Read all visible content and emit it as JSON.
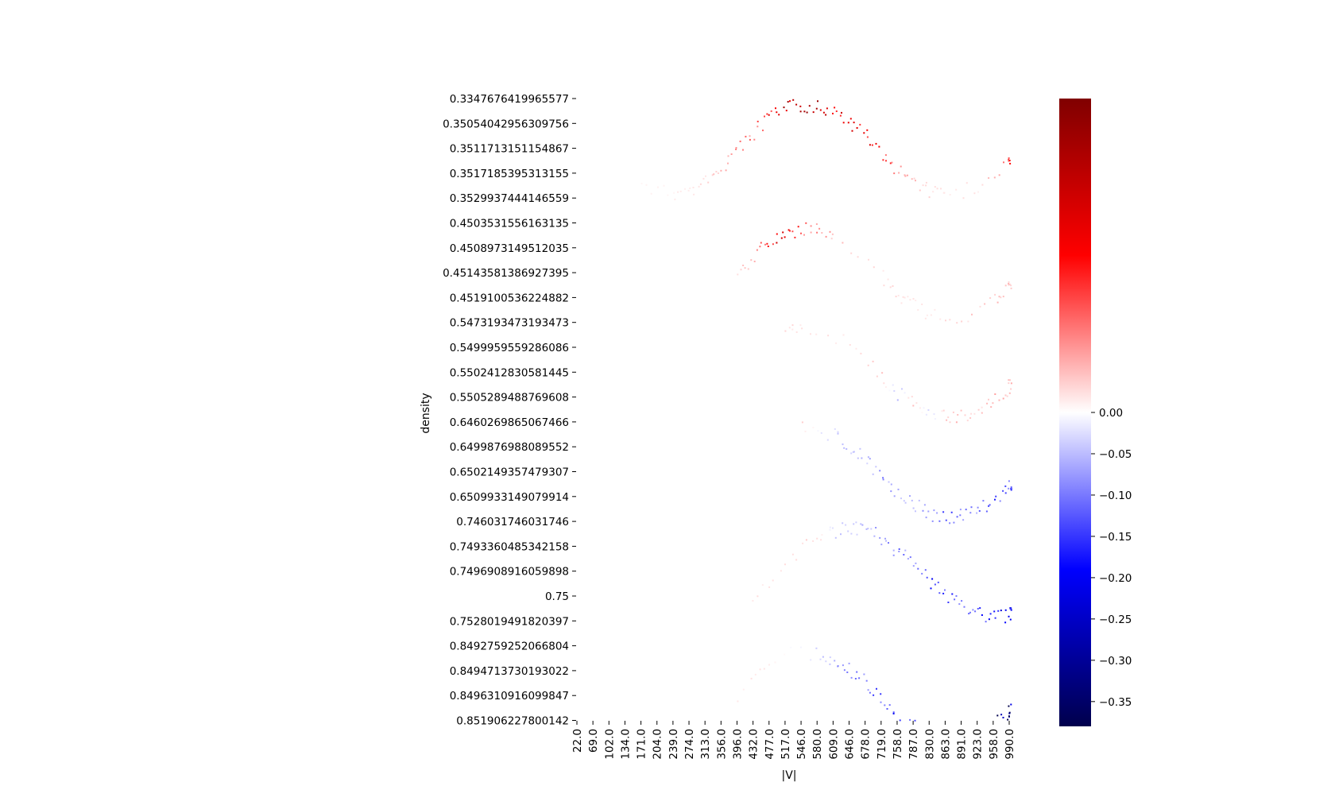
{
  "chart_data": {
    "type": "heatmap",
    "title": "",
    "xlabel": "|V|",
    "ylabel": "density",
    "x_tick_labels": [
      "22.0",
      "69.0",
      "102.0",
      "134.0",
      "171.0",
      "204.0",
      "239.0",
      "274.0",
      "313.0",
      "356.0",
      "396.0",
      "432.0",
      "477.0",
      "517.0",
      "546.0",
      "580.0",
      "609.0",
      "646.0",
      "678.0",
      "719.0",
      "758.0",
      "787.0",
      "830.0",
      "863.0",
      "891.0",
      "923.0",
      "958.0",
      "990.0"
    ],
    "y_tick_labels": [
      "0.3347676419965577",
      "0.35054042956309756",
      "0.3511713151154867",
      "0.3517185395313155",
      "0.3529937444146559",
      "0.4503531556163135",
      "0.4508973149512035",
      "0.45143581386927395",
      "0.4519100536224882",
      "0.5473193473193473",
      "0.5499959559286086",
      "0.5502412830581445",
      "0.5505289488769608",
      "0.6460269865067466",
      "0.6499876988089552",
      "0.6502149357479307",
      "0.6509933149079914",
      "0.746031746031746",
      "0.7493360485342158",
      "0.7496908916059898",
      "0.75",
      "0.7528019491820397",
      "0.8492759252066804",
      "0.8494713730193022",
      "0.8496310916099847",
      "0.851906227800142"
    ],
    "colorbar": {
      "colormap": "seismic",
      "min": -0.38,
      "max": 0.38,
      "ticks": [
        0.0,
        -0.05,
        -0.1,
        -0.15,
        -0.2,
        -0.25,
        -0.3,
        -0.35
      ],
      "tick_labels": [
        "0.00",
        "−0.05",
        "−0.10",
        "−0.15",
        "−0.20",
        "−0.25",
        "−0.30",
        "−0.35"
      ]
    },
    "grid": false,
    "bands": [
      {
        "density": "0.3347676419965577",
        "cells": [
          {
            "x": 171.0,
            "v": 0.01
          },
          {
            "x": 239.0,
            "v": 0.01
          },
          {
            "x": 274.0,
            "v": 0.02
          },
          {
            "x": 313.0,
            "v": 0.03
          },
          {
            "x": 356.0,
            "v": 0.05
          },
          {
            "x": 396.0,
            "v": 0.08
          },
          {
            "x": 432.0,
            "v": 0.12
          },
          {
            "x": 477.0,
            "v": 0.2
          },
          {
            "x": 517.0,
            "v": 0.28
          },
          {
            "x": 546.0,
            "v": 0.3
          },
          {
            "x": 580.0,
            "v": 0.27
          },
          {
            "x": 609.0,
            "v": 0.25
          },
          {
            "x": 646.0,
            "v": 0.26
          },
          {
            "x": 678.0,
            "v": 0.22
          },
          {
            "x": 719.0,
            "v": 0.18
          },
          {
            "x": 758.0,
            "v": 0.08
          },
          {
            "x": 787.0,
            "v": 0.05
          },
          {
            "x": 830.0,
            "v": 0.03
          },
          {
            "x": 863.0,
            "v": 0.02
          },
          {
            "x": 923.0,
            "v": 0.02
          },
          {
            "x": 990.0,
            "v": 0.15
          }
        ]
      },
      {
        "density": "0.4503531556163135",
        "cells": [
          {
            "x": 396.0,
            "v": 0.02
          },
          {
            "x": 432.0,
            "v": 0.08
          },
          {
            "x": 477.0,
            "v": 0.2
          },
          {
            "x": 517.0,
            "v": 0.22
          },
          {
            "x": 546.0,
            "v": 0.12
          },
          {
            "x": 580.0,
            "v": 0.1
          },
          {
            "x": 609.0,
            "v": 0.05
          },
          {
            "x": 719.0,
            "v": 0.02
          },
          {
            "x": 758.0,
            "v": 0.03
          },
          {
            "x": 787.0,
            "v": 0.02
          },
          {
            "x": 830.0,
            "v": 0.02
          },
          {
            "x": 891.0,
            "v": 0.03
          },
          {
            "x": 958.0,
            "v": 0.05
          },
          {
            "x": 990.0,
            "v": 0.04
          }
        ]
      },
      {
        "density": "0.5473193473193473",
        "cells": [
          {
            "x": 517.0,
            "v": 0.03
          },
          {
            "x": 546.0,
            "v": 0.02
          },
          {
            "x": 646.0,
            "v": 0.02
          },
          {
            "x": 719.0,
            "v": 0.04
          },
          {
            "x": 758.0,
            "v": -0.05
          },
          {
            "x": 787.0,
            "v": 0.05
          },
          {
            "x": 830.0,
            "v": -0.04
          },
          {
            "x": 863.0,
            "v": 0.04
          },
          {
            "x": 891.0,
            "v": 0.05
          },
          {
            "x": 923.0,
            "v": 0.03
          },
          {
            "x": 958.0,
            "v": 0.06
          },
          {
            "x": 990.0,
            "v": 0.05
          }
        ]
      },
      {
        "density": "0.6460269865067466",
        "cells": [
          {
            "x": 546.0,
            "v": 0.03
          },
          {
            "x": 609.0,
            "v": -0.04
          },
          {
            "x": 646.0,
            "v": -0.05
          },
          {
            "x": 678.0,
            "v": -0.05
          },
          {
            "x": 719.0,
            "v": -0.08
          },
          {
            "x": 758.0,
            "v": -0.06
          },
          {
            "x": 787.0,
            "v": -0.05
          },
          {
            "x": 830.0,
            "v": -0.1
          },
          {
            "x": 863.0,
            "v": -0.12
          },
          {
            "x": 891.0,
            "v": -0.1
          },
          {
            "x": 923.0,
            "v": -0.09
          },
          {
            "x": 958.0,
            "v": -0.14
          },
          {
            "x": 990.0,
            "v": -0.12
          }
        ]
      },
      {
        "density": "0.746031746031746",
        "cells": [
          {
            "x": 432.0,
            "v": 0.02
          },
          {
            "x": 517.0,
            "v": 0.03
          },
          {
            "x": 580.0,
            "v": 0.03
          },
          {
            "x": 609.0,
            "v": -0.03
          },
          {
            "x": 646.0,
            "v": -0.06
          },
          {
            "x": 678.0,
            "v": -0.05
          },
          {
            "x": 719.0,
            "v": -0.08
          },
          {
            "x": 758.0,
            "v": -0.1
          },
          {
            "x": 787.0,
            "v": -0.08
          },
          {
            "x": 830.0,
            "v": -0.16
          },
          {
            "x": 863.0,
            "v": -0.14
          },
          {
            "x": 891.0,
            "v": -0.12
          },
          {
            "x": 923.0,
            "v": -0.13
          },
          {
            "x": 958.0,
            "v": -0.18
          },
          {
            "x": 990.0,
            "v": -0.2
          }
        ]
      },
      {
        "density": "0.8492759252066804",
        "cells": [
          {
            "x": 396.0,
            "v": 0.02
          },
          {
            "x": 477.0,
            "v": 0.02
          },
          {
            "x": 580.0,
            "v": -0.03
          },
          {
            "x": 609.0,
            "v": -0.06
          },
          {
            "x": 646.0,
            "v": -0.1
          },
          {
            "x": 678.0,
            "v": -0.09
          },
          {
            "x": 719.0,
            "v": -0.14
          },
          {
            "x": 758.0,
            "v": -0.18
          },
          {
            "x": 787.0,
            "v": -0.16
          },
          {
            "x": 830.0,
            "v": -0.22
          },
          {
            "x": 863.0,
            "v": -0.2
          },
          {
            "x": 891.0,
            "v": -0.24
          },
          {
            "x": 923.0,
            "v": -0.28
          },
          {
            "x": 958.0,
            "v": -0.3
          },
          {
            "x": 990.0,
            "v": -0.36
          }
        ]
      }
    ]
  }
}
